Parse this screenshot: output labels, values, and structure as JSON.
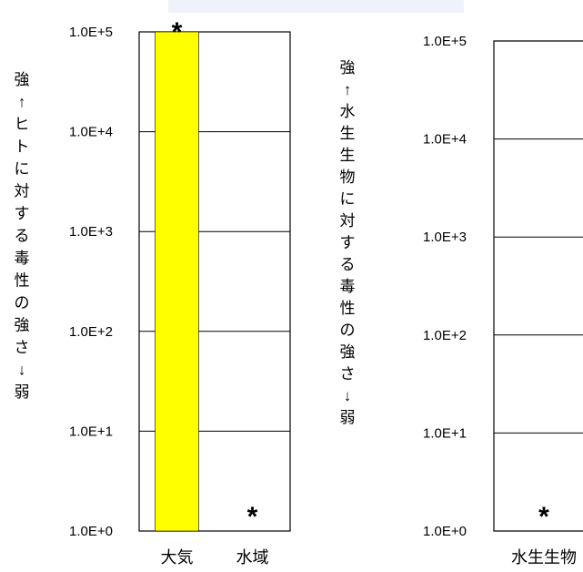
{
  "chart_data": [
    {
      "type": "bar",
      "yscale": "log",
      "ylim": [
        1,
        100000
      ],
      "yticks": [
        "1.0E+0",
        "1.0E+1",
        "1.0E+2",
        "1.0E+3",
        "1.0E+4",
        "1.0E+5"
      ],
      "ylabel": "強↑ヒトに対する毒性の強さ↓弱",
      "categories": [
        "大気",
        "水域"
      ],
      "values": [
        100000,
        1
      ],
      "bar_color": "#ffff00",
      "annotations": [
        "*",
        "*"
      ],
      "grid": true
    },
    {
      "type": "bar",
      "yscale": "log",
      "ylim": [
        1,
        100000
      ],
      "yticks": [
        "1.0E+0",
        "1.0E+1",
        "1.0E+2",
        "1.0E+3",
        "1.0E+4",
        "1.0E+5"
      ],
      "ylabel": "強↑水生生物に対する毒性の強さ↓弱",
      "categories": [
        "水生生物"
      ],
      "values": [
        1
      ],
      "annotations": [
        "*"
      ],
      "grid": true
    }
  ]
}
